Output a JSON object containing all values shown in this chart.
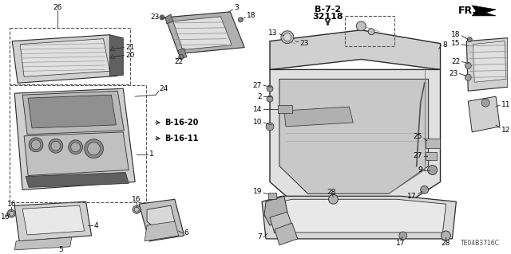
{
  "bg_color": "#ffffff",
  "line_color": "#2a2a2a",
  "diagram_code": "TE04B3716C",
  "ref_text1": "B-7-2",
  "ref_text2": "32118",
  "fr_text": "FR.",
  "bref1": "B-16-20",
  "bref2": "B-16-11",
  "gray_fill": "#c8c8c8",
  "gray_dark": "#888888",
  "gray_light": "#e8e8e8",
  "gray_mid": "#b0b0b0",
  "label_fontsize": 6.5,
  "bold_fontsize": 7.5
}
